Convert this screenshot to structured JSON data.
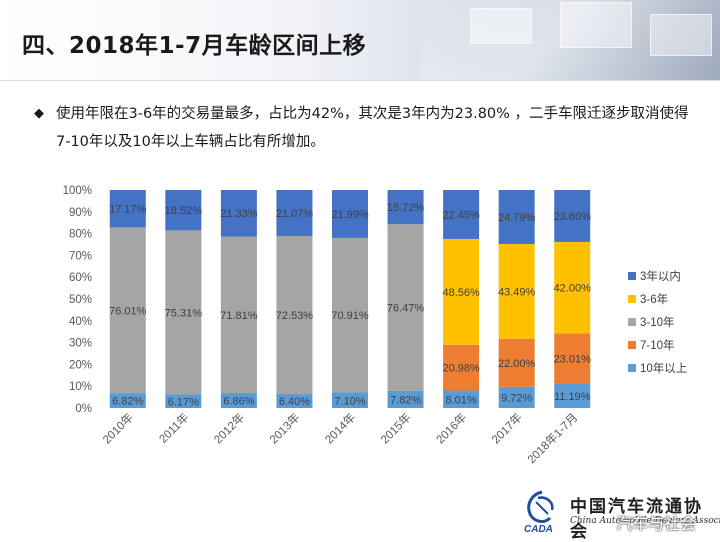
{
  "slide": {
    "title": "四、2018年1-7月车龄区间上移",
    "bullet": "使用年限在3-6年的交易量最多，占比为42%，其次是3年内为23.80% ，二手车限迁逐步取消使得7-10年以及10年以上车辆占比有所增加。",
    "logo_cn": "中国汽车流通协会",
    "logo_en": "China Automobile Dealers Association",
    "logo_abbr": "CADA",
    "watermark": "汽车与社会",
    "logo_icon": "cada-logo-icon"
  },
  "chart_data": {
    "type": "bar",
    "stacked": true,
    "percent": true,
    "categories": [
      "2010年",
      "2011年",
      "2012年",
      "2013年",
      "2014年",
      "2015年",
      "2016年",
      "2017年",
      "2018年1-7月"
    ],
    "ylim": [
      0,
      100
    ],
    "yticks": [
      "0%",
      "10%",
      "20%",
      "30%",
      "40%",
      "50%",
      "60%",
      "70%",
      "80%",
      "90%",
      "100%"
    ],
    "legend_position": "right",
    "series": [
      {
        "name": "10年以上",
        "color": "#5b9bd5",
        "values": [
          6.82,
          6.17,
          6.86,
          6.4,
          7.1,
          7.82,
          8.01,
          9.72,
          11.19
        ],
        "labels": [
          "6.82%",
          "6.17%",
          "6.86%",
          "6.40%",
          "7.10%",
          "7.82%",
          "8.01%",
          "9.72%",
          "11.19%"
        ]
      },
      {
        "name": "7-10年",
        "color": "#ed7d31",
        "values": [
          null,
          null,
          null,
          null,
          null,
          null,
          20.98,
          22.0,
          23.01
        ],
        "labels": [
          "",
          "",
          "",
          "",
          "",
          "",
          "20.98%",
          "22.00%",
          "23.01%"
        ]
      },
      {
        "name": "3-10年",
        "color": "#a5a5a5",
        "values": [
          76.01,
          75.31,
          71.81,
          72.53,
          70.91,
          76.47,
          null,
          null,
          null
        ],
        "labels": [
          "76.01%",
          "75.31%",
          "71.81%",
          "72.53%",
          "70.91%",
          "76.47%",
          "",
          "",
          ""
        ]
      },
      {
        "name": "3-6年",
        "color": "#ffc000",
        "values": [
          null,
          null,
          null,
          null,
          null,
          null,
          48.56,
          43.49,
          42.0
        ],
        "labels": [
          "",
          "",
          "",
          "",
          "",
          "",
          "48.56%",
          "43.49%",
          "42.00%"
        ]
      },
      {
        "name": "3年以内",
        "color": "#4472c4",
        "values": [
          17.17,
          18.52,
          21.33,
          21.07,
          21.99,
          15.72,
          22.45,
          24.79,
          23.8
        ],
        "labels": [
          "17.17%",
          "18.52%",
          "21.33%",
          "21.07%",
          "21.99%",
          "15.72%",
          "22.45%",
          "24.79%",
          "23.80%"
        ]
      }
    ],
    "legend_order": [
      "3年以内",
      "3-6年",
      "3-10年",
      "7-10年",
      "10年以上"
    ]
  }
}
